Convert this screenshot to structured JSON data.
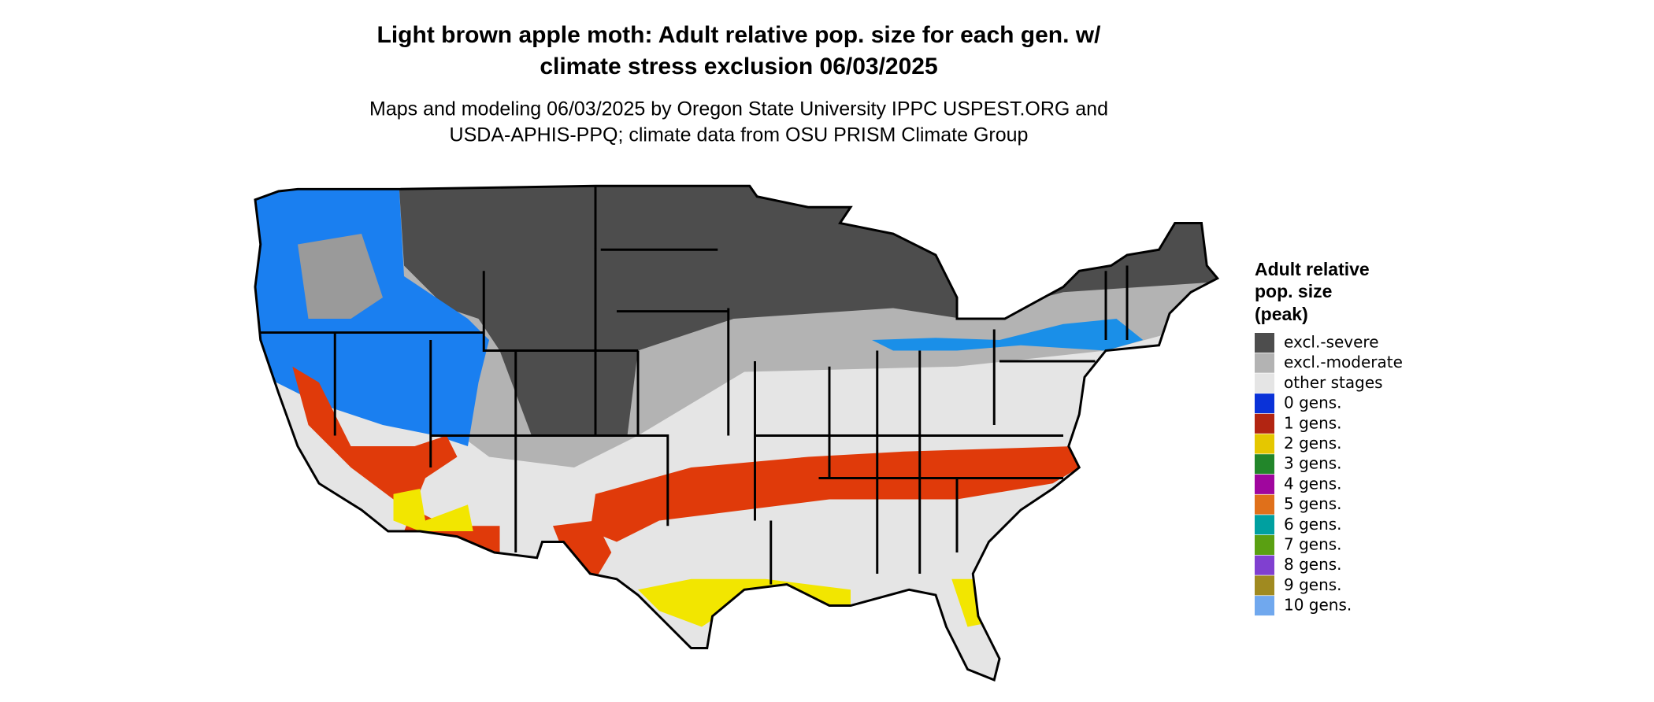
{
  "title": [
    "Light brown apple moth: Adult relative pop. size for each gen. w/",
    "climate stress exclusion 06/03/2025"
  ],
  "subtitle": [
    "Maps and modeling 06/03/2025 by Oregon State University IPPC USPEST.ORG and",
    "USDA-APHIS-PPQ; climate data from OSU PRISM Climate Group"
  ],
  "legend": {
    "title": [
      "Adult relative",
      "pop. size",
      "(peak)"
    ],
    "items": [
      {
        "label": "excl.-severe",
        "color": "#4d4d4d"
      },
      {
        "label": "excl.-moderate",
        "color": "#b3b3b3"
      },
      {
        "label": "other stages",
        "color": "#e5e5e5"
      },
      {
        "label": "0 gens.",
        "color": "#0a32d8"
      },
      {
        "label": "1 gens.",
        "color": "#b22512"
      },
      {
        "label": "2 gens.",
        "color": "#e5c700"
      },
      {
        "label": "3 gens.",
        "color": "#22862a"
      },
      {
        "label": "4 gens.",
        "color": "#a0069e"
      },
      {
        "label": "5 gens.",
        "color": "#e0701a"
      },
      {
        "label": "6 gens.",
        "color": "#00a0a0"
      },
      {
        "label": "7 gens.",
        "color": "#5aa012"
      },
      {
        "label": "8 gens.",
        "color": "#8040d0"
      },
      {
        "label": "9 gens.",
        "color": "#a08a20"
      },
      {
        "label": "10 gens.",
        "color": "#70a8ee"
      }
    ]
  }
}
